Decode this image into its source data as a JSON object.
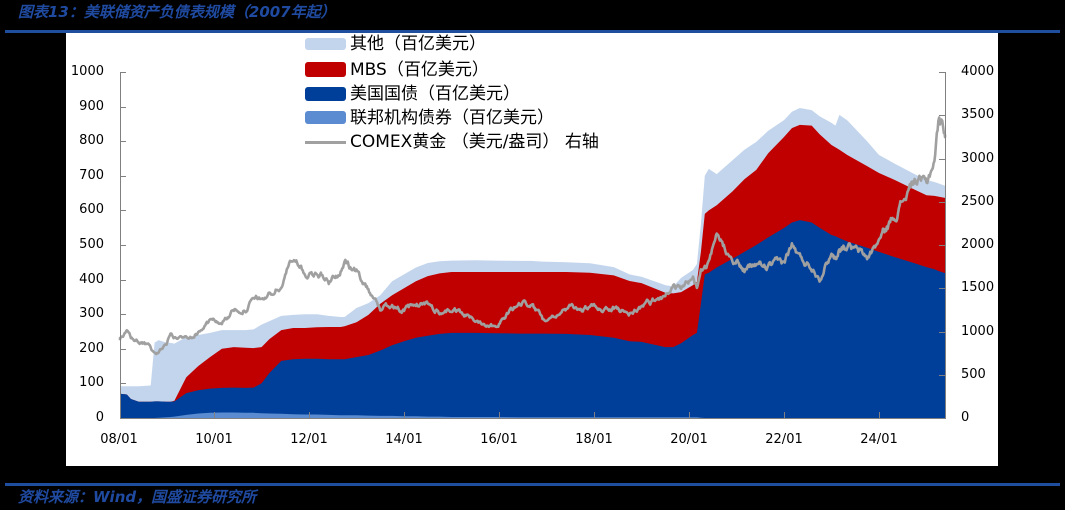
{
  "header": {
    "title": "图表13：美联储资产负债表规模（2007年起）"
  },
  "footer": {
    "source": "资料来源：Wind，国盛证券研究所"
  },
  "chart_data": {
    "type": "area",
    "stacked": true,
    "title": "图表13：美联储资产负债表规模（2007年起）",
    "xlabel": "",
    "ylabel": "",
    "grid": false,
    "legend_position": "top-center (inside plot)",
    "x_ticks": [
      "08/01",
      "10/01",
      "12/01",
      "14/01",
      "16/01",
      "18/01",
      "20/01",
      "22/01",
      "24/01"
    ],
    "left_axis": {
      "unit": "百亿美元",
      "ylim": [
        0,
        1000
      ],
      "ticks": [
        0,
        100,
        200,
        300,
        400,
        500,
        600,
        700,
        800,
        900,
        1000
      ]
    },
    "right_axis": {
      "unit": "美元/盎司",
      "ylim": [
        0,
        4000
      ],
      "ticks": [
        0,
        500,
        1000,
        1500,
        2000,
        2500,
        3000,
        3500,
        4000
      ]
    },
    "legend": [
      {
        "label": "其他（百亿美元）",
        "color": "#c3d5ec",
        "kind": "area"
      },
      {
        "label": "MBS（百亿美元）",
        "color": "#c00000",
        "kind": "area"
      },
      {
        "label": "美国国债（百亿美元）",
        "color": "#003f99",
        "kind": "area"
      },
      {
        "label": "联邦机构债券（百亿美元）",
        "color": "#5b8bd0",
        "kind": "area"
      },
      {
        "label": "COMEX黄金 （美元/盎司） 右轴",
        "color": "#a0a0a0",
        "kind": "line"
      }
    ],
    "x": [
      "2008-01",
      "2008-03",
      "2008-04",
      "2008-06",
      "2008-08",
      "2008-09",
      "2008-10",
      "2008-11",
      "2009-01",
      "2009-02",
      "2009-03",
      "2009-06",
      "2009-09",
      "2009-12",
      "2010-03",
      "2010-06",
      "2010-09",
      "2010-11",
      "2011-01",
      "2011-03",
      "2011-06",
      "2011-09",
      "2011-12",
      "2012-03",
      "2012-06",
      "2012-09",
      "2012-10",
      "2013-01",
      "2013-04",
      "2013-07",
      "2013-10",
      "2014-01",
      "2014-04",
      "2014-07",
      "2014-10",
      "2015-01",
      "2015-07",
      "2015-12",
      "2016-06",
      "2016-09",
      "2016-12",
      "2017-06",
      "2017-12",
      "2018-06",
      "2018-10",
      "2019-01",
      "2019-07",
      "2019-09",
      "2019-11",
      "2020-02",
      "2020-03",
      "2020-04",
      "2020-05",
      "2020-06",
      "2020-08",
      "2020-12",
      "2021-03",
      "2021-06",
      "2021-09",
      "2022-01",
      "2022-03",
      "2022-05",
      "2022-08",
      "2022-10",
      "2023-01",
      "2023-02",
      "2023-03",
      "2023-05",
      "2023-10",
      "2024-01",
      "2024-05",
      "2024-10",
      "2025-01",
      "2025-03",
      "2025-04",
      "2025-06"
    ],
    "series": [
      {
        "key": "agency",
        "name": "联邦机构债券（百亿美元）",
        "type": "area",
        "axis": "left",
        "color": "#5b8bd0",
        "values": [
          0,
          0,
          0,
          0,
          0,
          0,
          0,
          1,
          2,
          3,
          4,
          9,
          13,
          15,
          16,
          16,
          15,
          15,
          14,
          13,
          12,
          11,
          10,
          10,
          9,
          8,
          8,
          8,
          7,
          6,
          6,
          5,
          5,
          4,
          4,
          3,
          3,
          3,
          2,
          2,
          2,
          2,
          2,
          2,
          2,
          2,
          2,
          2,
          2,
          2,
          2,
          1,
          0,
          0,
          0,
          0,
          0,
          0,
          0,
          0,
          0,
          0,
          0,
          0,
          0,
          0,
          0,
          0,
          0,
          0,
          0,
          0,
          0,
          0,
          0,
          0
        ]
      },
      {
        "key": "treasury",
        "name": "美国国债（百亿美元）",
        "type": "area",
        "axis": "left",
        "color": "#003f99",
        "values": [
          70,
          68,
          55,
          47,
          47,
          47,
          48,
          47,
          45,
          44,
          44,
          63,
          67,
          70,
          71,
          72,
          72,
          73,
          86,
          117,
          153,
          159,
          161,
          161,
          161,
          162,
          162,
          168,
          175,
          189,
          204,
          217,
          227,
          234,
          239,
          243,
          243,
          242,
          242,
          242,
          242,
          241,
          238,
          230,
          220,
          218,
          203,
          203,
          214,
          238,
          244,
          329,
          415,
          420,
          435,
          460,
          480,
          500,
          522,
          549,
          565,
          572,
          565,
          550,
          529,
          525,
          520,
          510,
          492,
          480,
          465,
          447,
          436,
          430,
          425,
          419
        ]
      },
      {
        "key": "mbs",
        "name": "MBS（百亿美元）",
        "type": "area",
        "axis": "left",
        "color": "#c00000",
        "values": [
          0,
          0,
          0,
          0,
          0,
          0,
          0,
          0,
          0,
          0,
          2,
          46,
          70,
          91,
          113,
          117,
          116,
          114,
          105,
          98,
          89,
          90,
          89,
          91,
          93,
          93,
          95,
          101,
          116,
          135,
          145,
          153,
          163,
          172,
          175,
          176,
          176,
          177,
          178,
          178,
          178,
          179,
          180,
          180,
          174,
          170,
          157,
          155,
          148,
          144,
          147,
          150,
          175,
          180,
          180,
          195,
          210,
          217,
          243,
          263,
          273,
          275,
          280,
          270,
          260,
          257,
          255,
          250,
          236,
          228,
          223,
          213,
          208,
          212,
          215,
          217
        ]
      },
      {
        "key": "other",
        "name": "其他（百亿美元）",
        "type": "area",
        "axis": "left",
        "color": "#c3d5ec",
        "values": [
          22,
          24,
          37,
          45,
          46,
          47,
          170,
          177,
          171,
          170,
          165,
          116,
          90,
          70,
          54,
          49,
          51,
          54,
          65,
          52,
          41,
          38,
          40,
          38,
          32,
          29,
          27,
          41,
          34,
          25,
          40,
          40,
          40,
          38,
          35,
          33,
          34,
          33,
          32,
          32,
          30,
          28,
          27,
          24,
          19,
          18,
          22,
          20,
          41,
          44,
          52,
          80,
          110,
          120,
          90,
          90,
          85,
          81,
          65,
          49,
          47,
          49,
          45,
          52,
          64,
          63,
          101,
          100,
          72,
          52,
          47,
          45,
          44,
          40,
          38,
          35
        ]
      },
      {
        "key": "gold",
        "name": "COMEX黄金 （美元/盎司） 右轴",
        "type": "line",
        "axis": "right",
        "color": "#a0a0a0",
        "values": [
          900,
          980,
          920,
          880,
          840,
          800,
          740,
          760,
          860,
          980,
          930,
          930,
          1000,
          1120,
          1110,
          1240,
          1270,
          1370,
          1380,
          1420,
          1520,
          1880,
          1650,
          1700,
          1580,
          1700,
          1790,
          1680,
          1500,
          1260,
          1320,
          1240,
          1300,
          1320,
          1220,
          1250,
          1130,
          1070,
          1320,
          1330,
          1150,
          1260,
          1280,
          1270,
          1210,
          1290,
          1420,
          1520,
          1470,
          1600,
          1500,
          1680,
          1730,
          1770,
          2060,
          1880,
          1710,
          1780,
          1750,
          1800,
          2000,
          1850,
          1750,
          1640,
          1900,
          1850,
          1980,
          2000,
          1850,
          2050,
          2350,
          2750,
          2700,
          3000,
          3430,
          3300
        ]
      }
    ]
  }
}
